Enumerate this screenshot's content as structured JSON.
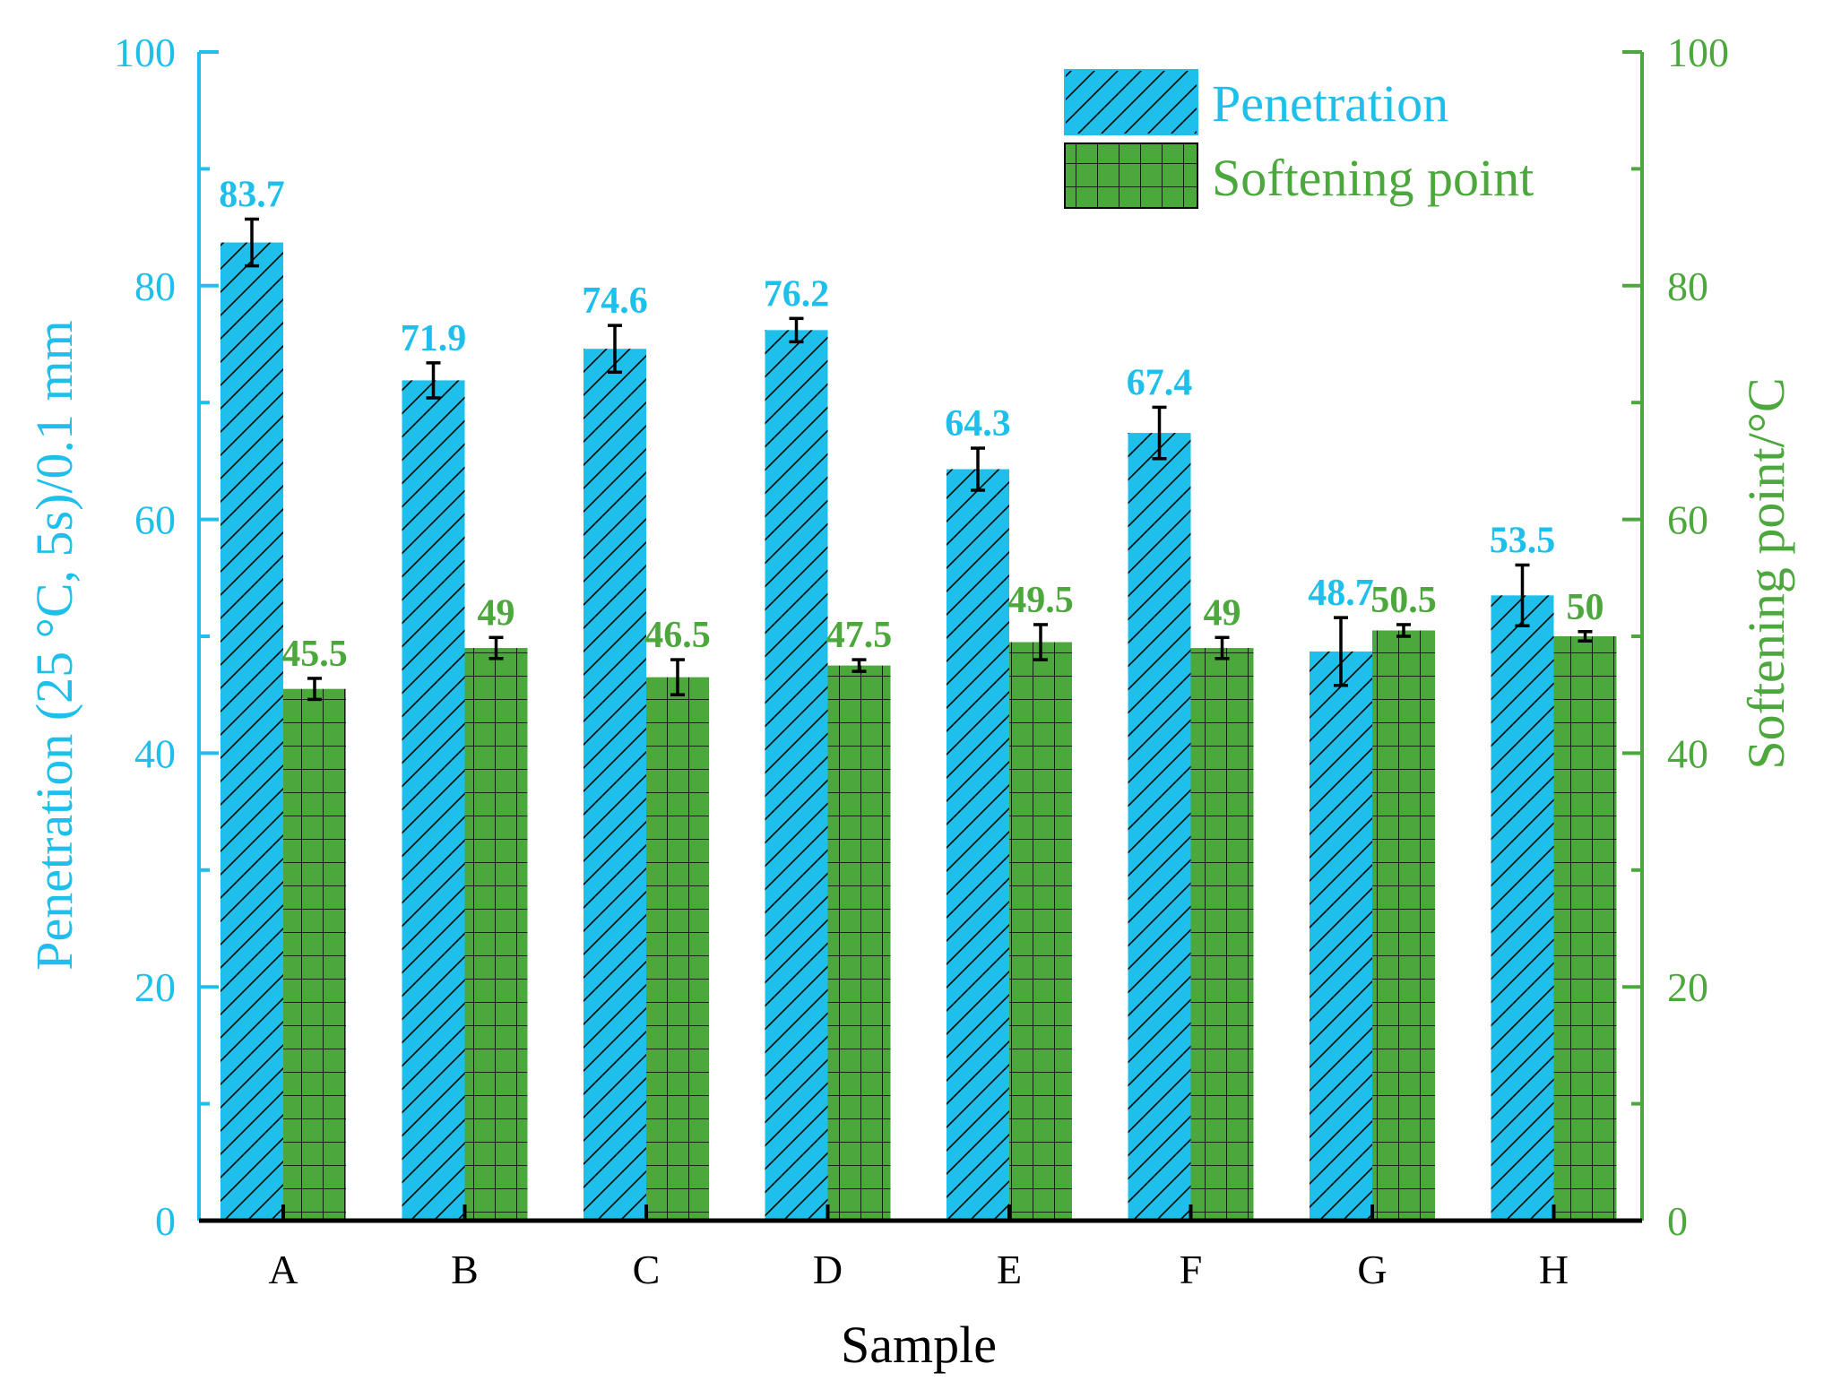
{
  "chart_data": {
    "type": "bar",
    "xlabel": "Sample",
    "categories": [
      "A",
      "B",
      "C",
      "D",
      "E",
      "F",
      "G",
      "H"
    ],
    "left_axis": {
      "label": "Penetration (25 °C, 5s)/0.1 mm",
      "ylim": [
        0,
        100
      ],
      "ticks": [
        0,
        20,
        40,
        60,
        80,
        100
      ],
      "color": "#1EC0EB"
    },
    "right_axis": {
      "label": "Softening point/°C",
      "ylim": [
        0,
        100
      ],
      "ticks": [
        0,
        20,
        40,
        60,
        80,
        100
      ],
      "color": "#4CA83C"
    },
    "series": [
      {
        "name": "Penetration",
        "axis": "left",
        "color": "#1EC0EB",
        "label_color": "#1EC0EB",
        "pattern": "diagonal-hatch",
        "values": [
          83.7,
          71.9,
          74.6,
          76.2,
          64.3,
          67.4,
          48.7,
          53.5
        ],
        "value_labels": [
          "83.7",
          "71.9",
          "74.6",
          "76.2",
          "64.3",
          "67.4",
          "48.7",
          "53.5"
        ],
        "errors": [
          2.0,
          1.5,
          2.0,
          1.0,
          1.8,
          2.2,
          2.9,
          2.6
        ]
      },
      {
        "name": "Softening point",
        "axis": "right",
        "color": "#4CA83C",
        "label_color": "#4CA83C",
        "pattern": "grid",
        "values": [
          45.5,
          49,
          46.5,
          47.5,
          49.5,
          49,
          50.5,
          50
        ],
        "value_labels": [
          "45.5",
          "49",
          "46.5",
          "47.5",
          "49.5",
          "49",
          "50.5",
          "50"
        ],
        "errors": [
          0.9,
          0.9,
          1.5,
          0.5,
          1.5,
          0.9,
          0.5,
          0.4
        ]
      }
    ],
    "legend": [
      "Penetration",
      "Softening point"
    ],
    "legend_position": "top-right"
  }
}
